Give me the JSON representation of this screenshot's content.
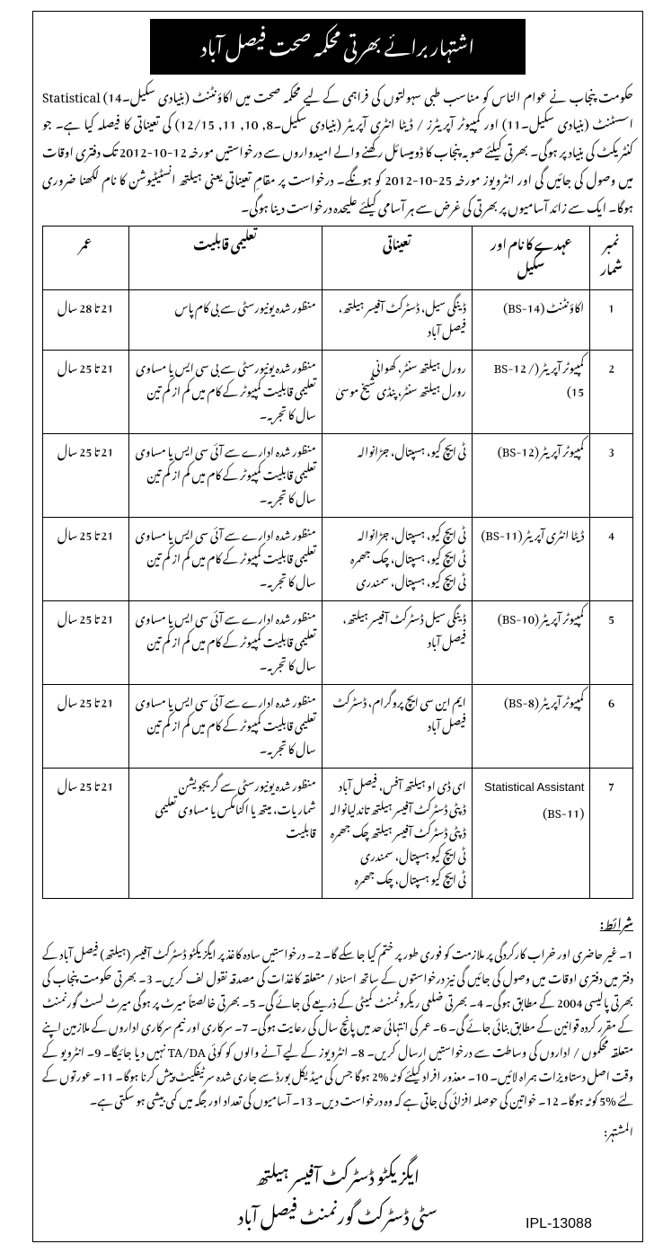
{
  "banner_title": "اشتہار برائے بھرتی محکمہ صحت فیصل آباد",
  "intro_text": "حکومت پنجاب نے عوام الناس کو مناسب طبی سہولتوں کی فراہمی کے لیے محکمہ صحت میں اکاؤنٹنٹ (بنیادی سکیل۔14) Statistical اسسٹنٹ (بنیادی سکیل۔11) اور کمپیوٹر آپریٹرز / ڈیٹا انٹری آپریٹر (بنیادی سکیل۔8, 10, 11, 12/15) کی تعیناتی کا فیصلہ کیا ہے۔ جو کنٹریکٹ کی بنیاد پر ہوگی۔ بھرتی کیلئے صوبہ پنجاب کا ڈومیسائل رکھنے والے امیدواروں سے درخواستیں مورخہ 12-10-2012 تک دفتری اوقات میں وصول کی جائیں گی اور انٹرویوز مورخہ 25-10-2012 کو ہونگے۔ درخواست پر مقامِ تعیناتی یعنی ہیلتھ انسٹیٹیوشن کا نام لکھنا ضروری ہوگا۔ ایک سے زائد آسامیوں پر بھرتی کی غرض سے ہر آسامی کیلئے علیحدہ درخواست دینا ہوگی۔",
  "headers": {
    "sr": "نمبر شمار",
    "post": "عہدے کا نام اور سکیل",
    "place": "تعیناتی",
    "qual": "تعلیمی قابلیت",
    "age": "عمر"
  },
  "rows": [
    {
      "sr": "1",
      "post": "اکاؤنٹنٹ (BS-14)",
      "place": "ڈینگی سیل، ڈسٹرکٹ آفیسر ہیلتھ، فیصل آباد",
      "qual": "منظور شدہ یونیورسٹی سے بی کام پاس",
      "age": "21 تا 28 سال"
    },
    {
      "sr": "2",
      "post": "کمپیوٹر آپریٹر (BS-12 / 15)",
      "place": "رورل ہیلتھ سنٹر، کھوانی\nرورل ہیلتھ سنٹر، پنڈی شیخ موسیٰ",
      "qual": "منظور شدہ یونیورسٹی سے بی سی ایس یا مساوی تعلیمی قابلیت کمپیوٹر کے کام میں کم از کم تین سال کا تجربہ۔",
      "age": "21 تا 25 سال"
    },
    {
      "sr": "3",
      "post": "کمپیوٹر آپریٹر (BS-12)",
      "place": "ٹی ایچ کیو، ہسپتال، جڑانوالہ",
      "qual": "منظور شدہ ادارے سے آئی سی ایس یا مساوی تعلیمی قابلیت کمپیوٹر کے کام میں کم از کم تین سال کا تجربہ۔",
      "age": "21 تا 25 سال"
    },
    {
      "sr": "4",
      "post": "ڈیٹا انٹری آپریٹر (BS-11)",
      "place": "ٹی ایچ کیو، ہسپتال، جڑانوالہ\nٹی ایچ کیو، ہسپتال، چک جھمرہ\nٹی ایچ کیو، ہسپتال، سمندری",
      "qual": "منظور شدہ ادارے سے آئی سی ایس یا مساوی تعلیمی قابلیت کمپیوٹر کے کام میں کم از کم تین سال کا تجربہ۔",
      "age": "21 تا 25 سال"
    },
    {
      "sr": "5",
      "post": "کمپیوٹر آپریٹر (BS-10)",
      "place": "ڈینگی سیل ڈسٹرکٹ آفیسر ہیلتھ، فیصل آباد",
      "qual": "منظور شدہ ادارے سے آئی سی ایس یا مساوی تعلیمی قابلیت کمپیوٹر کے کام میں کم از کم تین سال کا تجربہ۔",
      "age": "21 تا 25 سال"
    },
    {
      "sr": "6",
      "post": "کمپیوٹر آپریٹر (BS-8)",
      "place": "ایم این سی ایچ پروگرام، ڈسٹرکٹ فیصل آباد",
      "qual": "منظور شدہ ادارے سے آئی سی ایس یا مساوی تعلیمی قابلیت کمپیوٹر کے کام میں کم از کم تین سال کا تجربہ۔",
      "age": "21 تا 25 سال"
    },
    {
      "sr": "7",
      "post": "Statistical Assistant (BS-11)",
      "place": "ای ڈی او ہیلتھ آفس، فیصل آباد\nڈپٹی ڈسٹرکٹ آفیسر ہیلتھ تاندلیانوالہ\nڈپٹی ڈسٹرکٹ آفیسر ہیلتھ چک جھمرہ\nٹی ایچ کیو ہسپتال، سمندری\nٹی ایچ کیو ہسپتال، چک جھمرہ",
      "qual": "منظور شدہ یونیورسٹی سے گریجویشن شماریات، میتھ یا اکنامکس یا مساوی تعلیمی قابلیت",
      "age": "21 تا 25 سال"
    }
  ],
  "conditions_title": "شرائط:",
  "conditions_text": "1۔ غیر حاضری اور خراب کارکردگی پر ملازمت کو فوری طور پر ختم کیا جا سکے گا۔ 2۔ درخواستیں سادہ کاغذ پر ایگزیکٹو ڈسٹرکٹ آفیسر (ہیلتھ) فیصل آباد کے دفتر میں دفتری اوقات میں وصول کی جائیں گی نیز درخواستوں کے ساتھ اسناد / متعلقہ کاغذات کی مصدقہ نقول لف کریں۔ 3۔ بھرتی حکومت پنجاب کی بھرتی پالیسی 2004 کے مطابق ہوگی۔ 4۔ بھرتی ضلعی ریکروٹمنٹ کمیٹی کے ذریعے کی جائے گی۔ 5۔ بھرتی خالصتاً میرٹ پر ہوگی میرٹ لسٹ گورنمنٹ کے مقرر کردہ قوانین کے مطابق بنائی جائے گی۔ 6۔ عمر کی انتہائی حد میں پانچ سال کی رعایت ہوگی۔ 7۔ سرکاری اور نیم سرکاری اداروں کے ملازمین اپنے متعلقہ محکموں / اداروں کی وساطت سے درخواستیں ارسال کریں۔ 8۔ انٹرویوز کے لیے آنے والوں کو کوئی TA/DA نہیں دیا جائیگا۔ 9۔ انٹرویو کے وقت اصل دستاویزات ہمراہ لائیں۔ 10۔ معذور افراد کیلئے کوٹہ %2 ہوگا جس کی میڈیکل بورڈ سے جاری شدہ سرٹیفکیٹ پیش کرنا ہوگا۔ 11۔ عورتوں کے لئے %5 کوٹہ ہوگا۔ 12۔ خواتین کی حوصلہ افزائی کی جاتی ہے کہ وہ درخواست دیں۔ 13۔ آسامیوں کی تعداد اور جگہ میں کمی بیشی ہو سکتی ہے۔",
  "advertiser_label": "المشتہر:",
  "sign_line1": "ایگزیکٹو ڈسٹرکٹ آفیسر ہیلتھ",
  "sign_line2": "سٹی ڈسٹرکٹ گورنمنٹ فیصل آباد",
  "ipl": "IPL-13088"
}
